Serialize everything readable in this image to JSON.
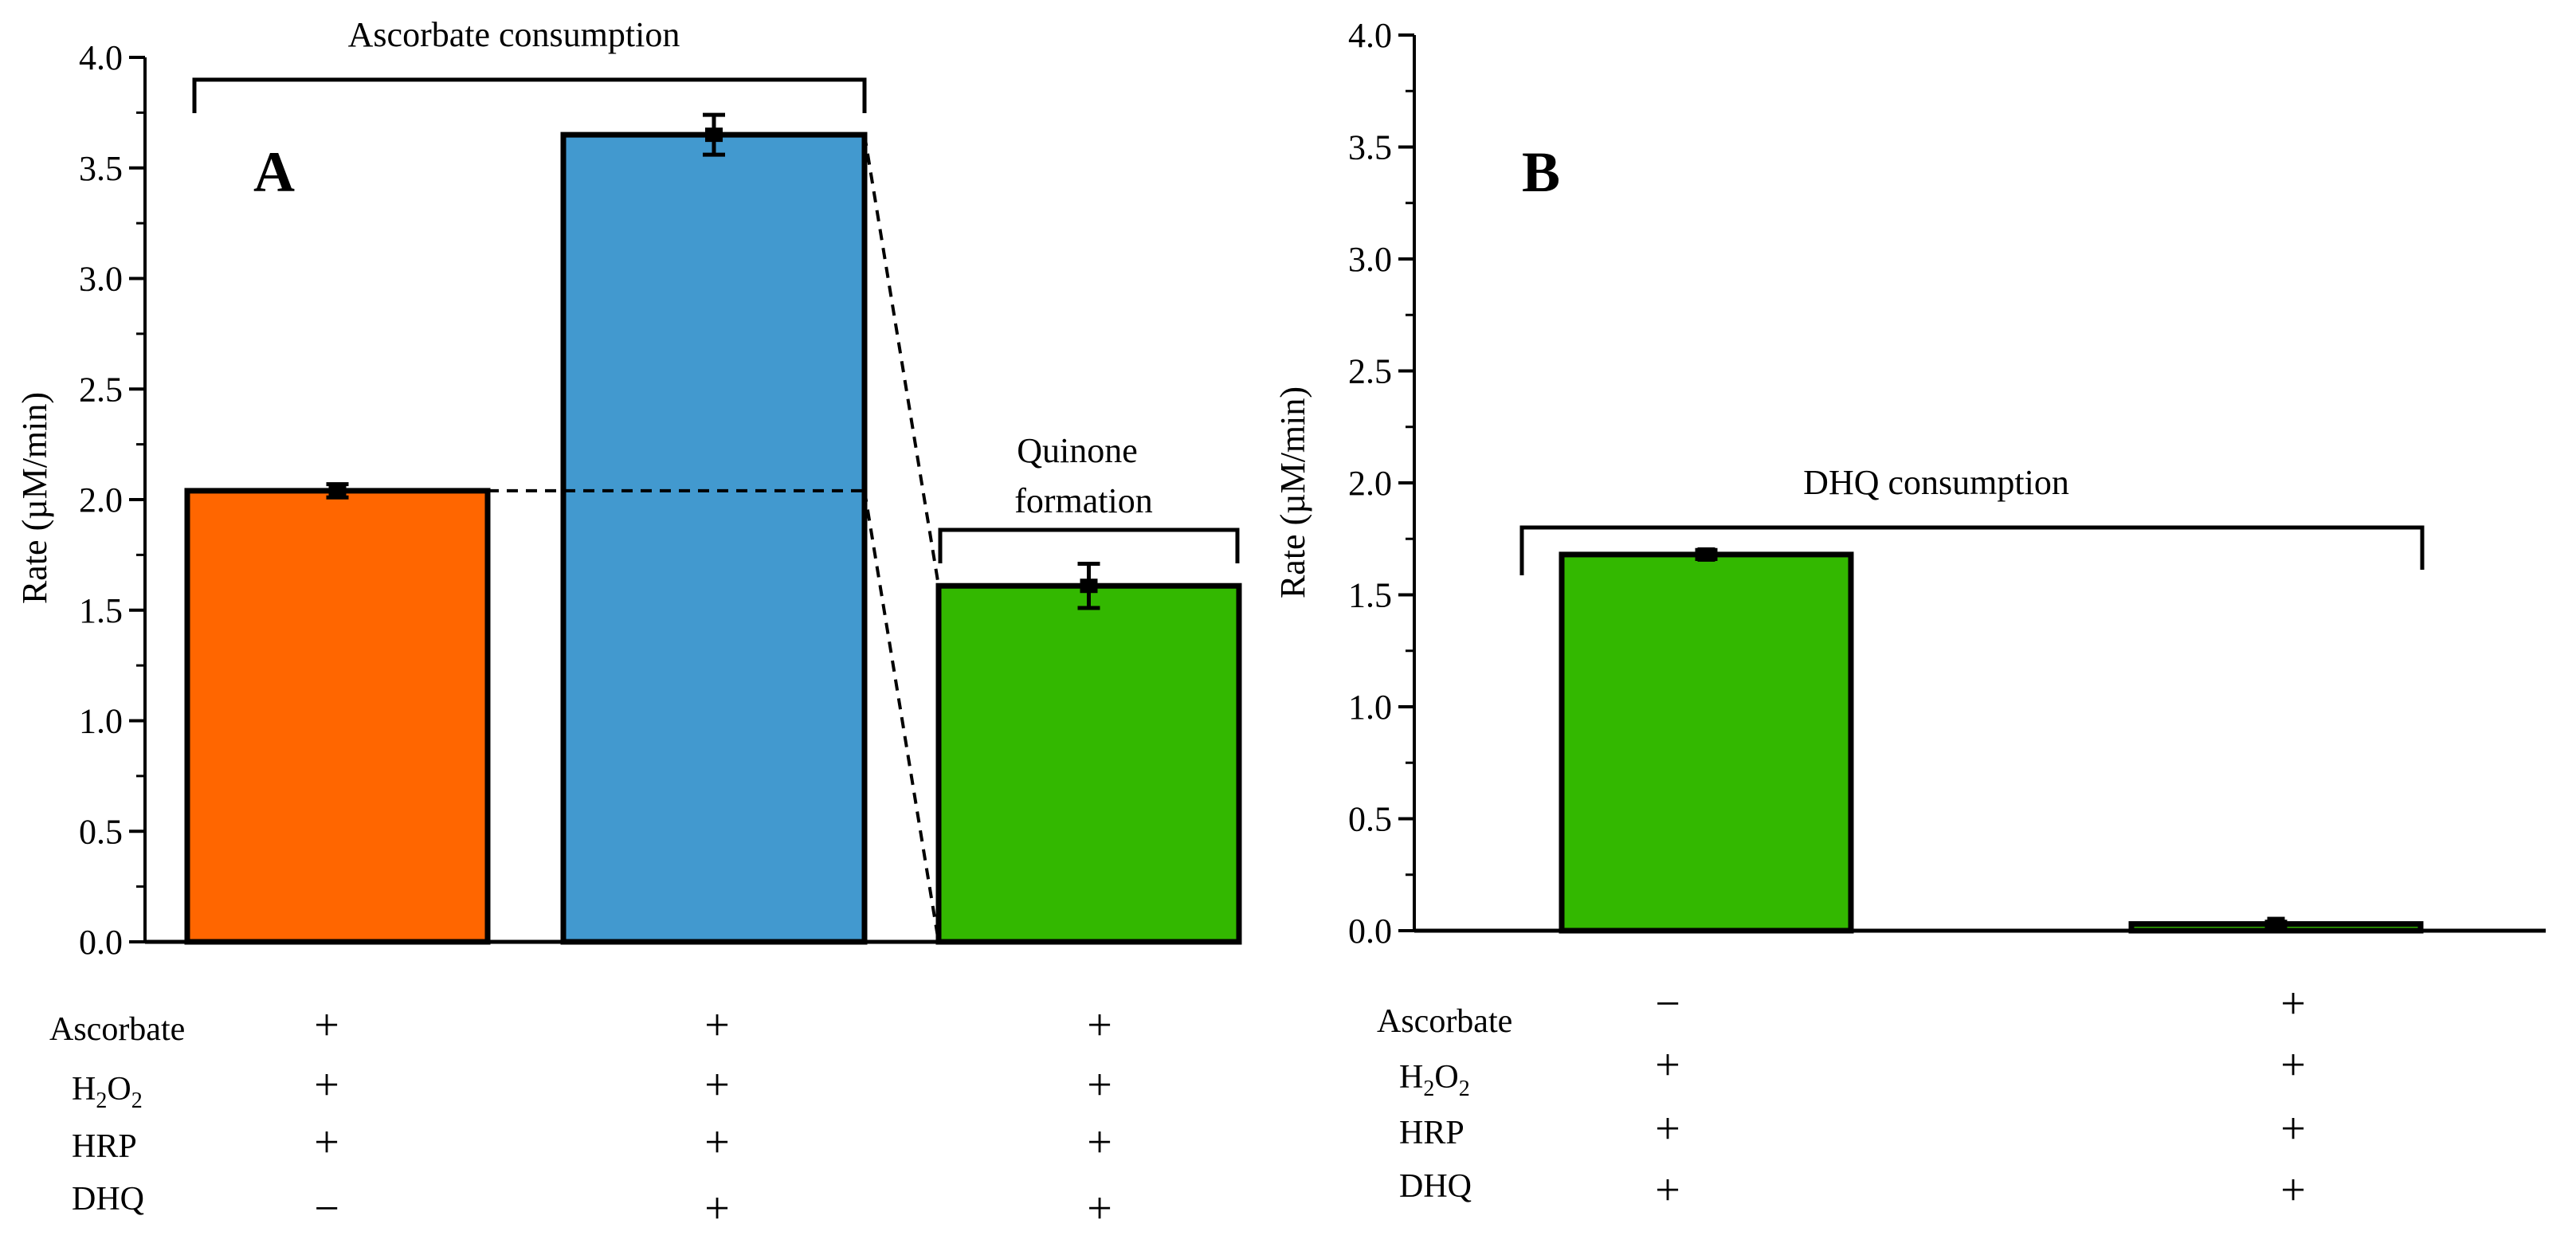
{
  "chart_data": [
    {
      "panel": "A",
      "type": "bar",
      "ylabel": "Rate (µM/min)",
      "ylim": [
        0,
        4.0
      ],
      "yticks": [
        "0.0",
        "0.5",
        "1.0",
        "1.5",
        "2.0",
        "2.5",
        "3.0",
        "3.5",
        "4.0"
      ],
      "bars": [
        {
          "value": 2.04,
          "error": 0.03,
          "color": "#ff6600"
        },
        {
          "value": 3.65,
          "error": 0.09,
          "color": "#4299cf"
        },
        {
          "value": 1.61,
          "error": 0.1,
          "color": "#33b800"
        }
      ],
      "annotations": {
        "bracket_left": "Ascorbate consumption",
        "bracket_right_line1": "Quinone",
        "bracket_right_line2": "formation"
      },
      "conditions": {
        "rows": [
          {
            "label": "Ascorbate",
            "signs": [
              "+",
              "+",
              "+"
            ]
          },
          {
            "label": "H2O2",
            "signs": [
              "+",
              "+",
              "+"
            ]
          },
          {
            "label": "HRP",
            "signs": [
              "+",
              "+",
              "+"
            ]
          },
          {
            "label": "DHQ",
            "signs": [
              "−",
              "+",
              "+"
            ]
          }
        ]
      }
    },
    {
      "panel": "B",
      "type": "bar",
      "ylabel": "Rate (µM/min)",
      "ylim": [
        0,
        4.0
      ],
      "yticks": [
        "0.0",
        "0.5",
        "1.0",
        "1.5",
        "2.0",
        "2.5",
        "3.0",
        "3.5",
        "4.0"
      ],
      "bars": [
        {
          "value": 1.68,
          "error": 0.02,
          "color": "#33b800"
        },
        {
          "value": 0.03,
          "error": 0.01,
          "color": "#33b800"
        }
      ],
      "annotations": {
        "bracket": "DHQ consumption"
      },
      "conditions": {
        "rows": [
          {
            "label": "Ascorbate",
            "signs": [
              "−",
              "+"
            ]
          },
          {
            "label": "H2O2",
            "signs": [
              "+",
              "+"
            ]
          },
          {
            "label": "HRP",
            "signs": [
              "+",
              "+"
            ]
          },
          {
            "label": "DHQ",
            "signs": [
              "+",
              "+"
            ]
          }
        ]
      }
    }
  ]
}
